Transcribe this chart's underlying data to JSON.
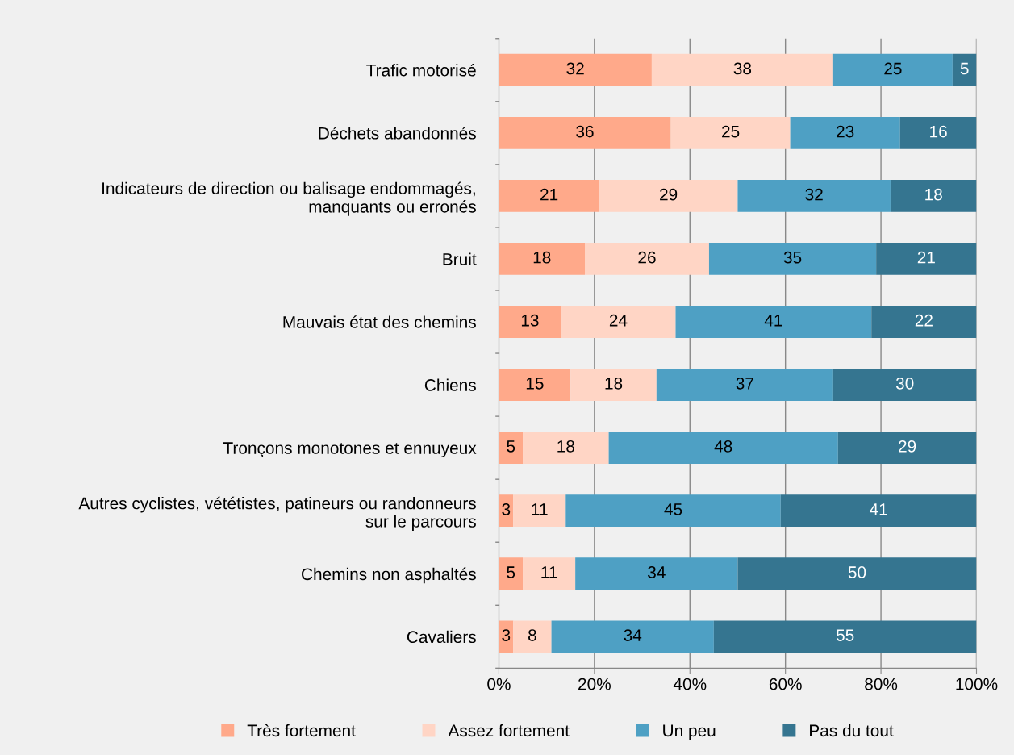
{
  "chart_data": {
    "type": "bar",
    "orientation": "horizontal",
    "stacked": true,
    "data_labels": true,
    "categories": [
      "Trafic motorisé",
      "Déchets abandonnés",
      "Indicateurs de direction ou balisage endommagés,\nmanquants ou erronés",
      "Bruit",
      "Mauvais état des chemins",
      "Chiens",
      "Tronçons monotones et ennuyeux",
      "Autres cyclistes, vététistes, patineurs ou randonneurs\nsur le parcours",
      "Chemins non asphaltés",
      "Cavaliers"
    ],
    "series": [
      {
        "name": "Très fortement",
        "color": "#ffa98a",
        "values": [
          32,
          36,
          21,
          18,
          13,
          15,
          5,
          3,
          5,
          3
        ]
      },
      {
        "name": "Assez fortement",
        "color": "#ffd5c5",
        "values": [
          38,
          25,
          29,
          26,
          24,
          18,
          18,
          11,
          11,
          8
        ]
      },
      {
        "name": "Un peu",
        "color": "#4ea0c4",
        "values": [
          25,
          23,
          32,
          35,
          41,
          37,
          48,
          45,
          34,
          34
        ]
      },
      {
        "name": "Pas du tout",
        "color": "#357590",
        "values": [
          5,
          16,
          18,
          21,
          22,
          30,
          29,
          41,
          50,
          55
        ]
      }
    ],
    "xlim": [
      0,
      100
    ],
    "xticks": [
      {
        "value": 0,
        "label": "0%"
      },
      {
        "value": 20,
        "label": "20%"
      },
      {
        "value": 40,
        "label": "40%"
      },
      {
        "value": 60,
        "label": "60%"
      },
      {
        "value": 80,
        "label": "80%"
      },
      {
        "value": 100,
        "label": "100%"
      }
    ],
    "grid": "x",
    "legend": "bottom"
  }
}
